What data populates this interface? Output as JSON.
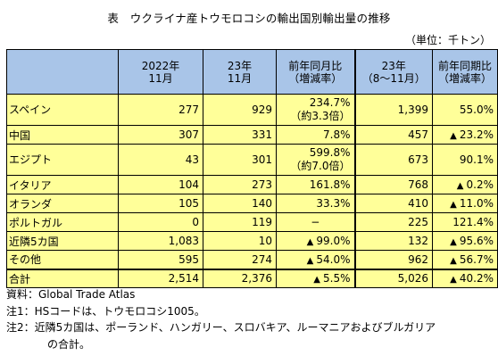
{
  "title": "表　ウクライナ産トウモロコシの輸出国別輸出量の推移",
  "unit": "（単位：千トン）",
  "headers": {
    "col1": [
      "2022年",
      "11月"
    ],
    "col2": [
      "23年",
      "11月"
    ],
    "col3": [
      "前年同月比",
      "（増減率）"
    ],
    "col4": [
      "23年",
      "（8〜11月）"
    ],
    "col5": [
      "前年同期比",
      "（増減率）"
    ]
  },
  "rows": [
    {
      "name": "スペイン",
      "c1": "277",
      "c2": "929",
      "c3a": "234.7%",
      "c3b": "（約3.3倍）",
      "c4": "1,399",
      "c5": "55.0%"
    },
    {
      "name": "中国",
      "c1": "307",
      "c2": "331",
      "c3": "7.8%",
      "c4": "457",
      "c5": "23.2%",
      "c5_neg": true
    },
    {
      "name": "エジプト",
      "c1": "43",
      "c2": "301",
      "c3a": "599.8%",
      "c3b": "（約7.0倍）",
      "c4": "673",
      "c5": "90.1%"
    },
    {
      "name": "イタリア",
      "c1": "104",
      "c2": "273",
      "c3": "161.8%",
      "c4": "768",
      "c5": "0.2%",
      "c5_neg": true
    },
    {
      "name": "オランダ",
      "c1": "105",
      "c2": "140",
      "c3": "33.3%",
      "c4": "410",
      "c5": "11.0%",
      "c5_neg": true
    },
    {
      "name": "ポルトガル",
      "c1": "0",
      "c2": "119",
      "c3": "−",
      "c4": "225",
      "c5": "121.4%"
    },
    {
      "name": "近隣5カ国",
      "c1": "1,083",
      "c2": "10",
      "c3": "99.0%",
      "c3_neg": true,
      "c4": "132",
      "c5": "95.6%",
      "c5_neg": true
    },
    {
      "name": "その他",
      "c1": "595",
      "c2": "274",
      "c3": "54.0%",
      "c3_neg": true,
      "c4": "962",
      "c5": "56.7%",
      "c5_neg": true
    }
  ],
  "total": {
    "name": "合計",
    "c1": "2,514",
    "c2": "2,376",
    "c3": "5.5%",
    "c3_neg": true,
    "c4": "5,026",
    "c5": "40.2%",
    "c5_neg": true
  },
  "neg_symbol": "▲",
  "notes": {
    "source": "資料：Global Trade Atlas",
    "note1": "注1：HSコードは、トウモロコシ1005。",
    "note2": "注2：近隣5カ国は、ポーランド、ハンガリー、スロバキア、ルーマニアおよびブルガリア",
    "note2b": "の合計。"
  },
  "colors": {
    "header_bg": "#a9c5e8",
    "cell_bg": "#ffff99"
  }
}
